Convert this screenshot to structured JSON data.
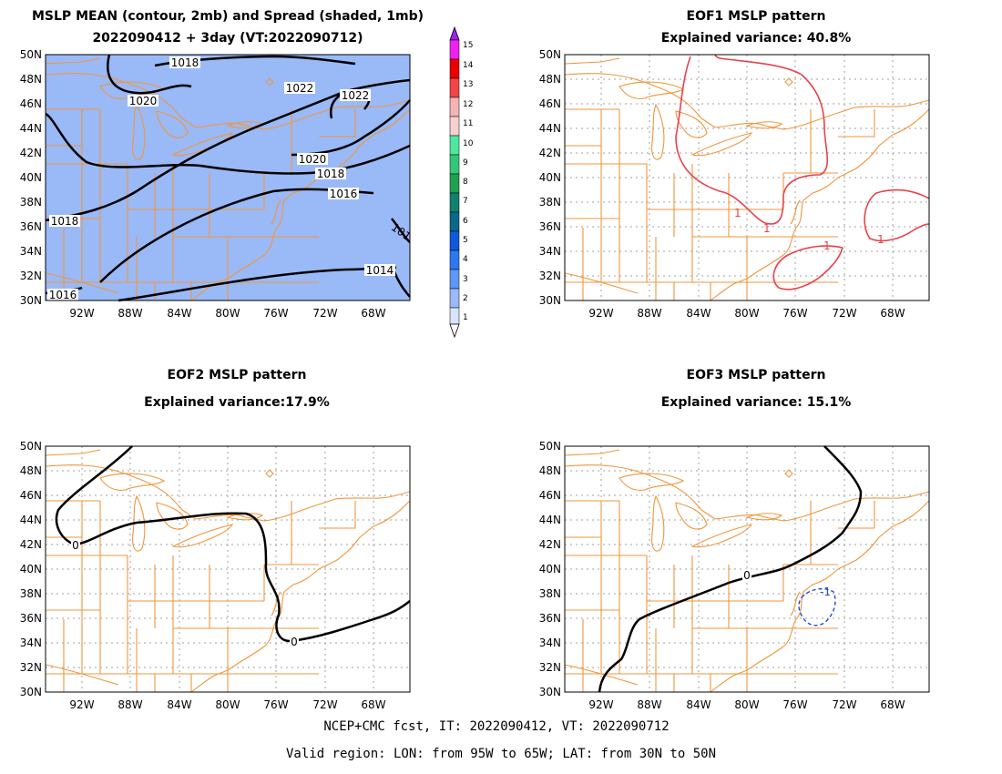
{
  "panels": [
    {
      "id": "mean",
      "title1": "MSLP MEAN (contour, 2mb) and Spread (shaded, 1mb)",
      "title2": "2022090412 + 3day (VT:2022090712)",
      "lat_labels": [
        "50N",
        "48N",
        "46N",
        "44N",
        "42N",
        "40N",
        "38N",
        "36N",
        "34N",
        "32N",
        "30N"
      ],
      "lon_labels": [
        "92W",
        "88W",
        "84W",
        "80W",
        "76W",
        "72W",
        "68W"
      ],
      "contour_labels": [
        "1018",
        "1020",
        "1022",
        "1022",
        "1020",
        "1018",
        "1016",
        "1018",
        "1014",
        "1016",
        "101"
      ],
      "shading": "#9ab9f7"
    },
    {
      "id": "eof1",
      "title1": "EOF1 MSLP pattern",
      "title2": "Explained variance: 40.8%",
      "lat_labels": [
        "50N",
        "48N",
        "46N",
        "44N",
        "42N",
        "40N",
        "38N",
        "36N",
        "34N",
        "32N",
        "30N"
      ],
      "lon_labels": [
        "92W",
        "88W",
        "84W",
        "80W",
        "76W",
        "72W",
        "68W"
      ],
      "contour_labels": [
        "1",
        "1",
        "1",
        "1"
      ],
      "contour_color": "#e8424a"
    },
    {
      "id": "eof2",
      "title1": "EOF2 MSLP pattern",
      "title2": "Explained variance:17.9%",
      "lat_labels": [
        "50N",
        "48N",
        "46N",
        "44N",
        "42N",
        "40N",
        "38N",
        "36N",
        "34N",
        "32N",
        "30N"
      ],
      "lon_labels": [
        "92W",
        "88W",
        "84W",
        "80W",
        "76W",
        "72W",
        "68W"
      ],
      "contour_labels": [
        "0",
        "0"
      ]
    },
    {
      "id": "eof3",
      "title1": "EOF3 MSLP pattern",
      "title2": "Explained variance: 15.1%",
      "lat_labels": [
        "50N",
        "48N",
        "46N",
        "44N",
        "42N",
        "40N",
        "38N",
        "36N",
        "34N",
        "32N",
        "30N"
      ],
      "lon_labels": [
        "92W",
        "88W",
        "84W",
        "80W",
        "76W",
        "72W",
        "68W"
      ],
      "contour_labels": [
        "0",
        "-1"
      ],
      "contour_color": "#2448d8"
    }
  ],
  "colorbar": {
    "labels": [
      "15",
      "14",
      "13",
      "12",
      "11",
      "10",
      "9",
      "8",
      "7",
      "6",
      "5",
      "4",
      "3",
      "2",
      "1"
    ],
    "colors": [
      "#a020f0",
      "#f020f0",
      "#ee0000",
      "#f44444",
      "#f4b4b4",
      "#4ee8a0",
      "#30c878",
      "#20a050",
      "#108070",
      "#0a6888",
      "#1058e0",
      "#2c78f0",
      "#5c98f8",
      "#9ab9f7",
      "#d8e4fc"
    ]
  },
  "map_colors": {
    "coast": "#f0963c",
    "grid": "#a0a0a0"
  },
  "footer": {
    "line1": "NCEP+CMC fcst, IT: 2022090412, VT: 2022090712",
    "line2": "Valid region: LON: from 95W to 65W; LAT: from 30N to 50N"
  }
}
